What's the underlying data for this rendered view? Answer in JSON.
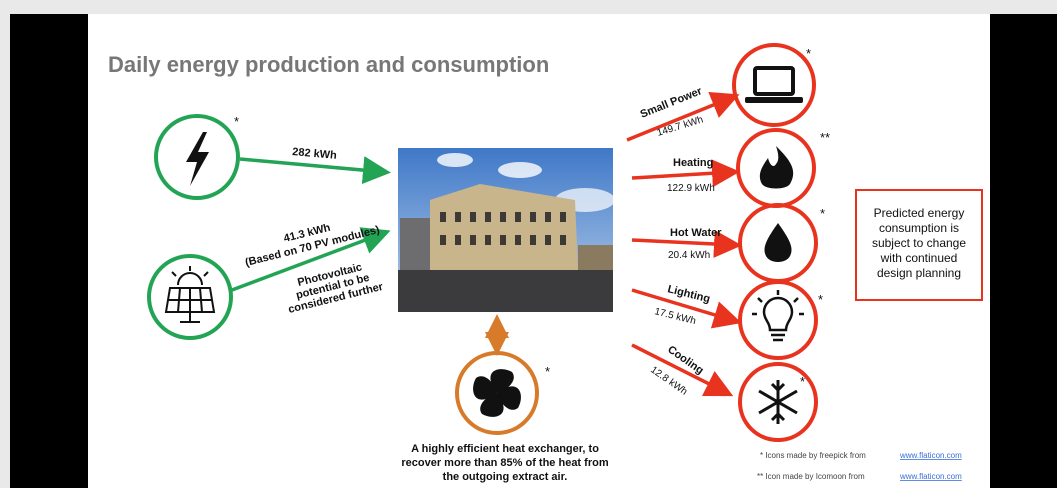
{
  "title": "Daily energy production and consumption",
  "sources": [
    {
      "value": "282 kWh",
      "note": "*"
    },
    {
      "value": "41.3 kWh",
      "detail": "(Based on 70 PV modules)",
      "caption": [
        "Photovoltaic",
        "potential to be",
        "considered further"
      ]
    }
  ],
  "heat_exchanger": {
    "note": "*",
    "caption": [
      "A highly efficient heat exchanger, to",
      "recover more than 85% of the heat from",
      "the outgoing extract air."
    ]
  },
  "consumption": [
    {
      "label": "Small Power",
      "value": "149.7 kWh",
      "note": "*"
    },
    {
      "label": "Heating",
      "value": "122.9 kWh",
      "note": "**"
    },
    {
      "label": "Hot Water",
      "value": "20.4 kWh",
      "note": "*"
    },
    {
      "label": "Lighting",
      "value": "17.5 kWh",
      "note": "*"
    },
    {
      "label": "Cooling",
      "value": "12.8 kWh",
      "note": "*"
    }
  ],
  "disclaimer": [
    "Predicted energy",
    "consumption is",
    "subject to change",
    "with continued",
    "design planning"
  ],
  "credits": [
    {
      "text": "* Icons made by freepick from",
      "link": "www.flaticon.com"
    },
    {
      "text": "** Icon made by Icomoon from",
      "link": "www.flaticon.com"
    }
  ]
}
